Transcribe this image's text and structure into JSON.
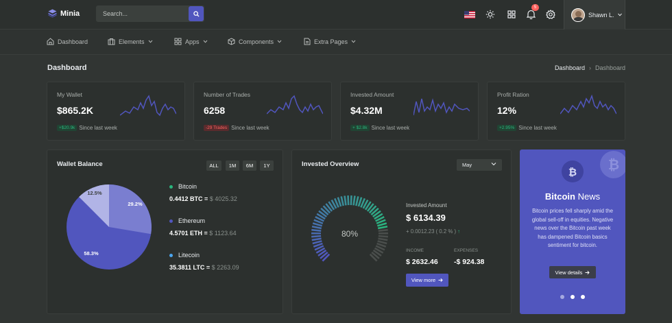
{
  "app": {
    "name": "Minia"
  },
  "search": {
    "placeholder": "Search..."
  },
  "header": {
    "notification_count": "5",
    "user_name": "Shawn L."
  },
  "nav": [
    {
      "label": "Dashboard",
      "icon": "home-icon"
    },
    {
      "label": "Elements",
      "icon": "briefcase-icon"
    },
    {
      "label": "Apps",
      "icon": "grid-icon"
    },
    {
      "label": "Components",
      "icon": "box-icon"
    },
    {
      "label": "Extra Pages",
      "icon": "file-icon"
    }
  ],
  "page": {
    "title": "Dashboard",
    "breadcrumb": [
      "Dashboard",
      "Dashboard"
    ]
  },
  "stats": [
    {
      "label": "My Wallet",
      "value": "$865.2K",
      "change": "+$20.9k",
      "change_dir": "up",
      "note": "Since last week"
    },
    {
      "label": "Number of Trades",
      "value": "6258",
      "change": "-29 Trades",
      "change_dir": "down",
      "note": "Since last week"
    },
    {
      "label": "Invested Amount",
      "value": "$4.32M",
      "change": "+ $2.8k",
      "change_dir": "up",
      "note": "Since last week"
    },
    {
      "label": "Profit Ration",
      "value": "12%",
      "change": "+2.95%",
      "change_dir": "up",
      "note": "Since last week"
    }
  ],
  "wallet": {
    "title": "Wallet Balance",
    "ranges": [
      "ALL",
      "1M",
      "6M",
      "1Y"
    ],
    "pie_labels": [
      "29.2%",
      "58.3%",
      "12.5%"
    ],
    "coins": [
      {
        "name": "Bitcoin",
        "amount": "0.4412 BTC",
        "usd": "$ 4025.32",
        "color": "#2ab57d"
      },
      {
        "name": "Ethereum",
        "amount": "4.5701 ETH",
        "usd": "$ 1123.64",
        "color": "#5156be"
      },
      {
        "name": "Litecoin",
        "amount": "35.3811 LTC",
        "usd": "$ 2263.09",
        "color": "#4ba6ef"
      }
    ]
  },
  "invested": {
    "title": "Invested Overview",
    "month": "May",
    "gauge_value": 80,
    "gauge_label": "80%",
    "amount_label": "Invested Amount",
    "amount": "$ 6134.39",
    "delta": "+ 0.0012.23 ( 0.2 % )",
    "income_label": "INCOME",
    "income": "$ 2632.46",
    "expenses_label": "EXPENSES",
    "expenses": "-$ 924.38",
    "button": "View more"
  },
  "news": {
    "title_bold": "Bitcoin",
    "title_rest": " News",
    "text": "Bitcoin prices fell sharply amid the global sell-off in equities. Negative news over the Bitcoin past week has dampened Bitcoin basics sentiment for bitcoin.",
    "button": "View details",
    "slides": 3,
    "active_slide": 3
  },
  "colors": {
    "primary": "#5156be",
    "success": "#2ab57d",
    "danger": "#fd625e",
    "info": "#4ba6ef"
  }
}
